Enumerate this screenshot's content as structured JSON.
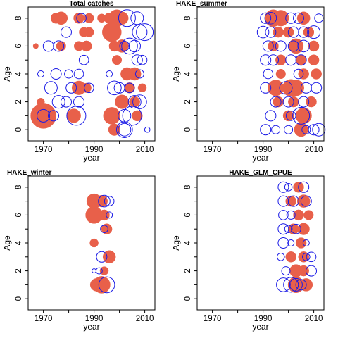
{
  "chart_data": [
    {
      "type": "scatter",
      "title": "Total catches",
      "xlabel": "year",
      "ylabel": "Age",
      "xlim": [
        1964,
        2014
      ],
      "ylim": [
        -0.8,
        8.8
      ],
      "x_ticks": [
        1970,
        1990,
        2010
      ],
      "x_minor_ticks": [
        1980,
        2000
      ],
      "y_ticks": [
        0,
        2,
        4,
        6,
        8
      ],
      "y_minor_ticks": [
        1,
        3,
        5,
        7
      ],
      "series": [
        {
          "color": "#e8604a",
          "filled": true,
          "points": [
            [
              1970,
              1,
              2.4
            ],
            [
              1975,
              8,
              1.0
            ],
            [
              1977,
              8,
              1.2
            ],
            [
              1984,
              6,
              0.9
            ],
            [
              1987,
              6,
              1.0
            ],
            [
              1988,
              7,
              0.9
            ],
            [
              1988,
              8,
              0.9
            ],
            [
              1993,
              8,
              0.8
            ],
            [
              1984,
              8,
              1.0
            ],
            [
              1986,
              7,
              0.9
            ],
            [
              1987,
              3,
              0.9
            ],
            [
              1984,
              3,
              1.3
            ],
            [
              1982,
              1,
              1.3
            ],
            [
              1977,
              6,
              0.9
            ],
            [
              1969,
              2,
              0.7
            ],
            [
              1967,
              6,
              0.5
            ],
            [
              1997,
              7,
              1.8
            ],
            [
              1996,
              8,
              1.0
            ],
            [
              1999,
              8,
              1.6
            ],
            [
              2001,
              8,
              1.2
            ],
            [
              1998,
              6,
              1.0
            ],
            [
              2001,
              6,
              1.2
            ],
            [
              1997,
              1,
              1.6
            ],
            [
              1998,
              0,
              1.1
            ],
            [
              2001,
              2,
              1.3
            ],
            [
              2003,
              4,
              1.2
            ],
            [
              2006,
              4,
              1.2
            ],
            [
              2009,
              3,
              0.8
            ],
            [
              2007,
              1,
              1.0
            ],
            [
              2006,
              2,
              1.0
            ],
            [
              1999,
              5,
              0.9
            ],
            [
              2004,
              3,
              1.0
            ]
          ]
        },
        {
          "color": "#1a1ae6",
          "filled": false,
          "points": [
            [
              1970,
              1,
              1.2
            ],
            [
              1974,
              1,
              1.0
            ],
            [
              1983,
              1,
              1.8
            ],
            [
              1969,
              4,
              0.6
            ],
            [
              1975,
              4,
              1.0
            ],
            [
              1973,
              3,
              1.2
            ],
            [
              1976,
              2,
              1.2
            ],
            [
              1979,
              2,
              1.0
            ],
            [
              1984,
              2,
              1.0
            ],
            [
              1972,
              6,
              1.0
            ],
            [
              1976,
              6,
              1.0
            ],
            [
              1979,
              7,
              1.0
            ],
            [
              1985,
              8,
              0.9
            ],
            [
              1981,
              3,
              1.0
            ],
            [
              1988,
              3,
              0.9
            ],
            [
              1986,
              5,
              0.9
            ],
            [
              1980,
              4,
              0.8
            ],
            [
              1984,
              4,
              0.9
            ],
            [
              2003,
              8,
              1.6
            ],
            [
              2007,
              8,
              1.2
            ],
            [
              2008,
              7,
              1.4
            ],
            [
              2010,
              7,
              1.6
            ],
            [
              2004,
              6,
              1.5
            ],
            [
              2006,
              6,
              1.1
            ],
            [
              1998,
              3,
              1.3
            ],
            [
              2000,
              3,
              1.0
            ],
            [
              2002,
              0,
              1.5
            ],
            [
              2005,
              1,
              1.8
            ],
            [
              2006,
              2,
              1.2
            ],
            [
              2011,
              0,
              0.5
            ],
            [
              2002,
              1,
              1.2
            ],
            [
              2007,
              5,
              1.0
            ],
            [
              2009,
              5,
              0.9
            ],
            [
              2002,
              6,
              0.9
            ],
            [
              2008,
              2,
              1.3
            ],
            [
              1996,
              4,
              0.6
            ],
            [
              2008,
              4,
              0.8
            ],
            [
              2004,
              3,
              0.9
            ],
            [
              2002,
              0,
              1.2
            ]
          ]
        }
      ]
    },
    {
      "type": "scatter",
      "title": "HAKE_summer",
      "xlabel": "year",
      "ylabel": "Age",
      "xlim": [
        1964,
        2014
      ],
      "ylim": [
        -0.8,
        8.8
      ],
      "x_ticks": [
        1970,
        1990,
        2010
      ],
      "x_minor_ticks": [
        1980,
        2000
      ],
      "y_ticks": [
        0,
        2,
        4,
        6,
        8
      ],
      "y_minor_ticks": [
        1,
        3,
        5,
        7
      ],
      "series": [
        {
          "color": "#e8604a",
          "filled": true,
          "points": [
            [
              1994,
              8,
              1.6
            ],
            [
              1997,
              8,
              1.5
            ],
            [
              2006,
              8,
              1.2
            ],
            [
              1996,
              7,
              1.0
            ],
            [
              2000,
              7,
              1.0
            ],
            [
              2008,
              7,
              1.0
            ],
            [
              1994,
              6,
              1.0
            ],
            [
              2003,
              6,
              1.4
            ],
            [
              2010,
              6,
              1.0
            ],
            [
              1997,
              5,
              1.0
            ],
            [
              2005,
              5,
              1.0
            ],
            [
              2010,
              5,
              1.0
            ],
            [
              1997,
              4,
              0.9
            ],
            [
              2006,
              4,
              1.0
            ],
            [
              2011,
              4,
              1.0
            ],
            [
              1995,
              3,
              1.5
            ],
            [
              2001,
              3,
              1.6
            ],
            [
              2003,
              3,
              1.5
            ],
            [
              1996,
              2,
              1.0
            ],
            [
              2002,
              2,
              1.0
            ],
            [
              2009,
              2,
              1.0
            ],
            [
              2000,
              1,
              1.0
            ],
            [
              2006,
              1,
              1.5
            ],
            [
              2005,
              0,
              1.3
            ]
          ]
        },
        {
          "color": "#1a1ae6",
          "filled": false,
          "points": [
            [
              1991,
              8,
              1.0
            ],
            [
              1993,
              8,
              1.1
            ],
            [
              2001,
              8,
              1.0
            ],
            [
              2004,
              8,
              1.0
            ],
            [
              2012,
              8,
              0.8
            ],
            [
              1990,
              7,
              1.1
            ],
            [
              1993,
              7,
              1.0
            ],
            [
              2002,
              7,
              1.0
            ],
            [
              2006,
              7,
              1.0
            ],
            [
              2010,
              7,
              1.2
            ],
            [
              1992,
              6,
              1.0
            ],
            [
              1997,
              6,
              1.0
            ],
            [
              2002,
              6,
              1.0
            ],
            [
              2006,
              6,
              1.1
            ],
            [
              1991,
              5,
              1.0
            ],
            [
              1994,
              5,
              1.0
            ],
            [
              2001,
              5,
              1.0
            ],
            [
              2005,
              5,
              1.0
            ],
            [
              1992,
              4,
              0.9
            ],
            [
              2004,
              4,
              0.9
            ],
            [
              1991,
              3,
              1.0
            ],
            [
              1999,
              3,
              1.2
            ],
            [
              2007,
              3,
              1.0
            ],
            [
              2011,
              3,
              1.0
            ],
            [
              1995,
              2,
              1.0
            ],
            [
              2000,
              2,
              1.0
            ],
            [
              2006,
              2,
              1.0
            ],
            [
              1993,
              1,
              1.0
            ],
            [
              2001,
              1,
              0.9
            ],
            [
              2005,
              1,
              1.6
            ],
            [
              1991,
              0,
              1.0
            ],
            [
              1995,
              0,
              0.8
            ],
            [
              2000,
              0,
              0.8
            ],
            [
              2007,
              0,
              0.8
            ],
            [
              2010,
              0,
              1.0
            ],
            [
              2012,
              0,
              1.2
            ]
          ]
        }
      ]
    },
    {
      "type": "scatter",
      "title": "HAKE_winter",
      "xlabel": "year",
      "ylabel": "Age",
      "xlim": [
        1964,
        2014
      ],
      "ylim": [
        -0.8,
        8.8
      ],
      "x_ticks": [
        1970,
        1990,
        2010
      ],
      "x_minor_ticks": [
        1980,
        2000
      ],
      "y_ticks": [
        0,
        2,
        4,
        6,
        8
      ],
      "y_minor_ticks": [
        1,
        3,
        5,
        7
      ],
      "series": [
        {
          "color": "#e8604a",
          "filled": true,
          "points": [
            [
              1990,
              7,
              1.4
            ],
            [
              1993,
              7,
              1.1
            ],
            [
              1990,
              6,
              1.6
            ],
            [
              1994,
              6,
              1.0
            ],
            [
              1995,
              5,
              1.0
            ],
            [
              1990,
              4,
              0.8
            ],
            [
              1996,
              3,
              1.2
            ],
            [
              1994,
              2,
              0.8
            ],
            [
              1991,
              1,
              1.2
            ],
            [
              1993,
              1,
              1.6
            ]
          ]
        },
        {
          "color": "#1a1ae6",
          "filled": false,
          "points": [
            [
              1994,
              7,
              1.1
            ],
            [
              1996,
              7,
              0.9
            ],
            [
              1996,
              6,
              0.6
            ],
            [
              1994,
              5,
              0.7
            ],
            [
              1993,
              3,
              1.0
            ],
            [
              1990,
              2,
              0.4
            ],
            [
              1992,
              2,
              0.6
            ],
            [
              1995,
              1,
              1.5
            ]
          ]
        }
      ]
    },
    {
      "type": "scatter",
      "title": "HAKE_GLM_CPUE",
      "xlabel": "year",
      "ylabel": "Age",
      "xlim": [
        1964,
        2014
      ],
      "ylim": [
        -0.8,
        8.8
      ],
      "x_ticks": [
        1970,
        1990,
        2010
      ],
      "x_minor_ticks": [
        1980,
        2000
      ],
      "y_ticks": [
        0,
        2,
        4,
        6,
        8
      ],
      "y_minor_ticks": [
        1,
        3,
        5,
        7
      ],
      "series": [
        {
          "color": "#e8604a",
          "filled": true,
          "points": [
            [
              2004,
              8,
              1.0
            ],
            [
              2006,
              7,
              1.2
            ],
            [
              2001,
              7,
              1.0
            ],
            [
              2004,
              6,
              1.0
            ],
            [
              2008,
              6,
              0.9
            ],
            [
              2002,
              5,
              1.0
            ],
            [
              2006,
              5,
              1.1
            ],
            [
              2005,
              4,
              1.0
            ],
            [
              2001,
              3,
              1.0
            ],
            [
              2006,
              3,
              1.0
            ],
            [
              2003,
              2,
              1.2
            ],
            [
              2006,
              2,
              1.0
            ],
            [
              2003,
              1,
              1.5
            ],
            [
              2007,
              1,
              1.2
            ]
          ]
        },
        {
          "color": "#1a1ae6",
          "filled": false,
          "points": [
            [
              1998,
              8,
              1.0
            ],
            [
              2000,
              8,
              0.7
            ],
            [
              2006,
              8,
              1.0
            ],
            [
              1998,
              7,
              1.0
            ],
            [
              2002,
              7,
              1.0
            ],
            [
              2007,
              7,
              1.0
            ],
            [
              1998,
              6,
              0.9
            ],
            [
              2001,
              6,
              0.8
            ],
            [
              1998,
              5,
              1.0
            ],
            [
              2000,
              5,
              0.7
            ],
            [
              2003,
              5,
              0.9
            ],
            [
              1998,
              4,
              1.0
            ],
            [
              2001,
              4,
              0.6
            ],
            [
              2007,
              4,
              0.6
            ],
            [
              1997,
              3,
              0.7
            ],
            [
              2007,
              3,
              0.7
            ],
            [
              2009,
              3,
              0.9
            ],
            [
              1999,
              2,
              0.8
            ],
            [
              2009,
              2,
              1.0
            ],
            [
              1998,
              1,
              1.3
            ],
            [
              2001,
              1,
              1.4
            ],
            [
              2003,
              1,
              1.2
            ],
            [
              2005,
              1,
              1.0
            ]
          ]
        }
      ]
    }
  ]
}
